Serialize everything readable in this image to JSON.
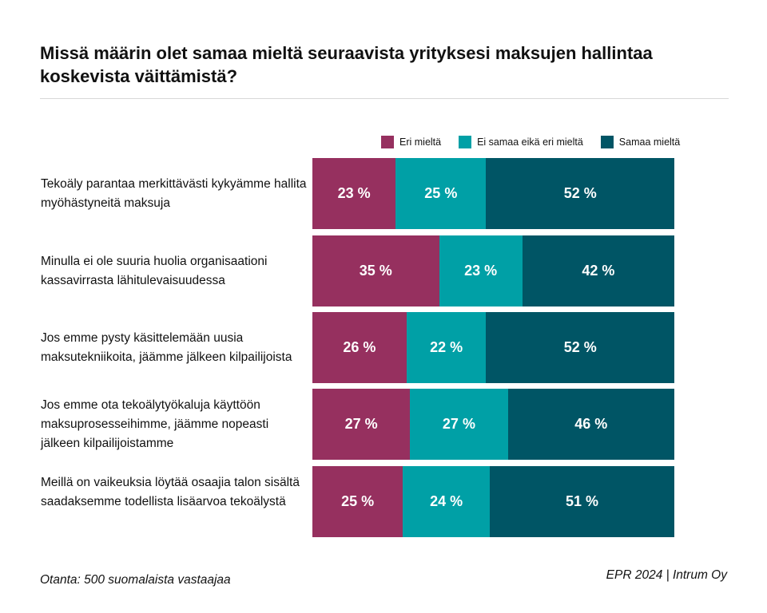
{
  "chart_data": {
    "type": "bar",
    "orientation": "horizontal-stacked",
    "title": "Missä määrin olet samaa mieltä seuraavista yrityksesi maksujen hallintaa koskevista väittämistä?",
    "legend_position": "top-right",
    "categories": [
      "Tekoäly parantaa merkittävästi kykyämme hallita myöhästyneitä maksuja",
      "Minulla ei ole suuria huolia organisaationi kassavirrasta lähitulevaisuudessa",
      "Jos emme pysty käsittelemään uusia maksutekniikoita, jäämme jälkeen kilpailijoista",
      "Jos emme ota tekoälytyökaluja käyttöön maksuprosesseihimme, jäämme nopeasti jälkeen kilpailijoistamme",
      "Meillä on vaikeuksia löytää osaajia talon sisältä saadaksemme todellista lisäarvoa tekoälystä"
    ],
    "series": [
      {
        "name": "Eri mieltä",
        "color": "#96305f",
        "values": [
          23,
          35,
          26,
          27,
          25
        ]
      },
      {
        "name": "Ei samaa eikä eri mieltä",
        "color": "#00a0a6",
        "values": [
          25,
          23,
          22,
          27,
          24
        ]
      },
      {
        "name": "Samaa mieltä",
        "color": "#005565",
        "values": [
          52,
          42,
          52,
          46,
          51
        ]
      }
    ],
    "value_suffix": " %"
  },
  "footer": {
    "note": "Otanta: 500 suomalaista vastaajaa",
    "credit": "EPR 2024 | Intrum Oy"
  }
}
